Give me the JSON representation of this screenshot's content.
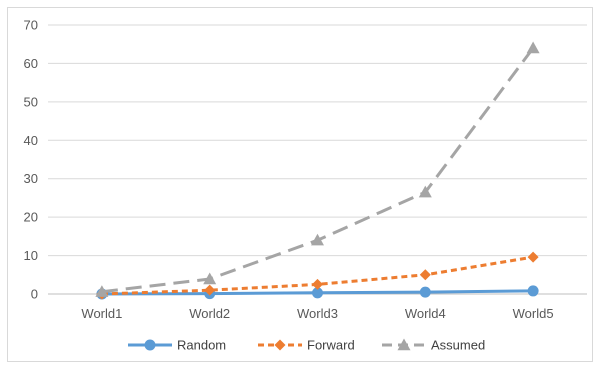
{
  "chart_data": {
    "type": "line",
    "title": "",
    "xlabel": "",
    "ylabel": "",
    "categories": [
      "World1",
      "World2",
      "World3",
      "World4",
      "World5"
    ],
    "ylim": [
      0,
      70
    ],
    "yticks": [
      0,
      10,
      20,
      30,
      40,
      50,
      60,
      70
    ],
    "grid": true,
    "legend_position": "bottom",
    "series": [
      {
        "name": "Random",
        "values": [
          0.0,
          0.1,
          0.3,
          0.5,
          0.8
        ],
        "color": "#5b9bd5",
        "marker": "circle",
        "dash": "solid"
      },
      {
        "name": "Forward",
        "values": [
          0.0,
          1.0,
          2.5,
          5.0,
          9.6
        ],
        "color": "#ed7d31",
        "marker": "diamond",
        "dash": "dash"
      },
      {
        "name": "Assumed",
        "values": [
          0.6,
          3.9,
          14.0,
          26.5,
          64.0
        ],
        "color": "#a5a5a5",
        "marker": "triangle",
        "dash": "longdash"
      }
    ]
  }
}
